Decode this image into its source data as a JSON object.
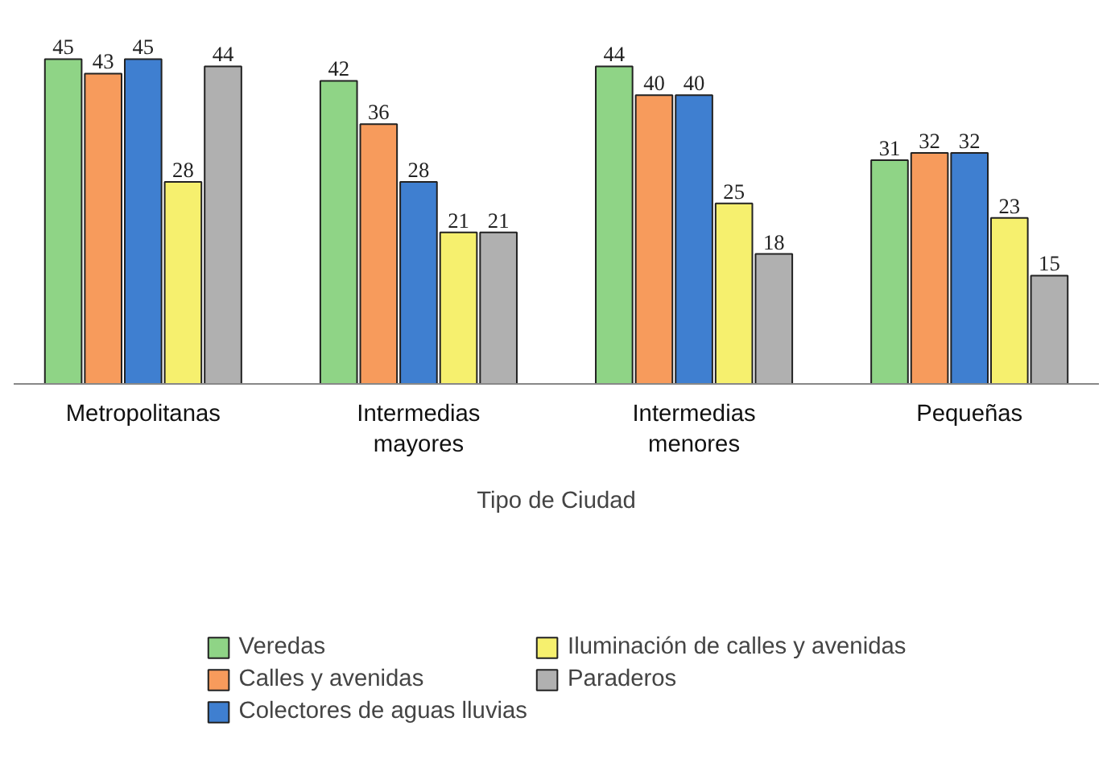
{
  "chart_data": {
    "type": "bar",
    "xlabel": "Tipo de Ciudad",
    "categories": [
      "Metropolitanas",
      "Intermedias\nmayores",
      "Intermedias\nmenores",
      "Pequeñas"
    ],
    "series": [
      {
        "name": "Veredas",
        "color": "#8fd486",
        "values": [
          45,
          42,
          44,
          31
        ]
      },
      {
        "name": "Calles y avenidas",
        "color": "#f79b5c",
        "values": [
          43,
          36,
          40,
          32
        ]
      },
      {
        "name": "Colectores de aguas lluvias",
        "color": "#3f7fd0",
        "values": [
          45,
          28,
          40,
          32
        ]
      },
      {
        "name": "Iluminación de calles y avenidas",
        "color": "#f6f06e",
        "values": [
          28,
          21,
          25,
          23
        ]
      },
      {
        "name": "Paraderos",
        "color": "#b0b0b0",
        "values": [
          44,
          21,
          18,
          15
        ]
      }
    ],
    "data_labels": true,
    "legend": "bottom",
    "grid": false
  }
}
